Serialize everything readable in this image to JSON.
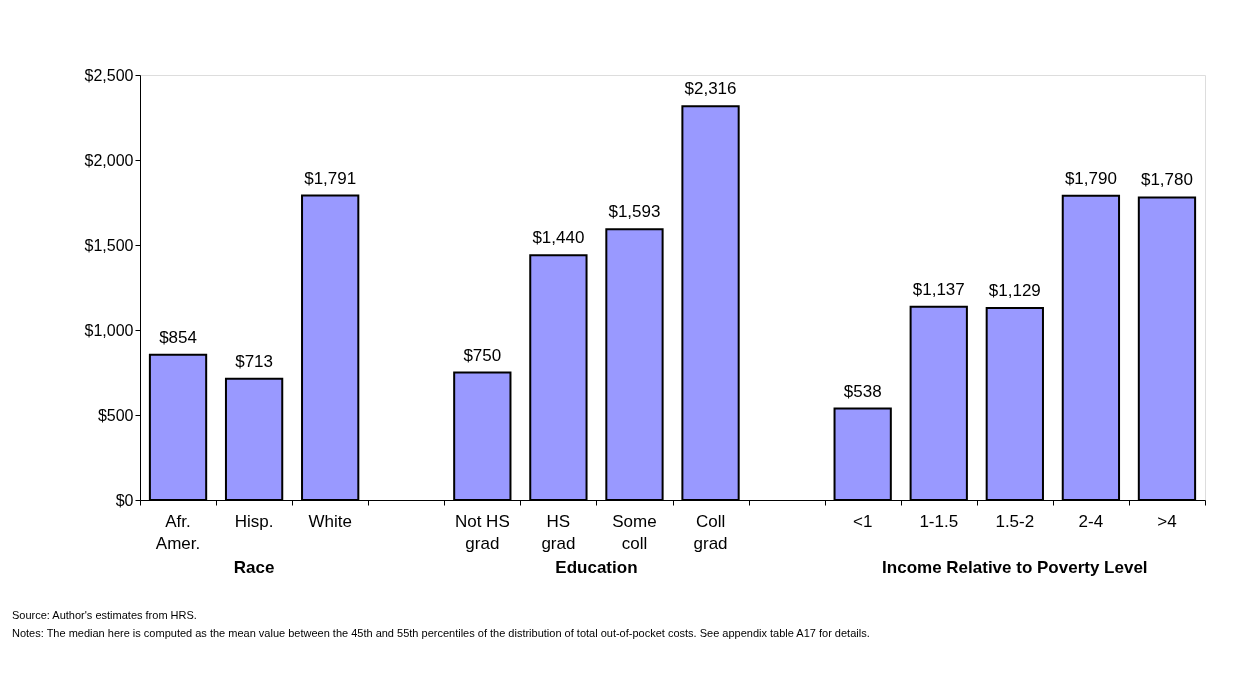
{
  "chart_data": {
    "type": "bar",
    "categories": [
      "Afr. Amer.",
      "Hisp.",
      "White",
      null,
      "Not HS grad",
      "HS grad",
      "Some coll",
      "Coll grad",
      null,
      "<1",
      "1-1.5",
      "1.5-2",
      "2-4",
      ">4"
    ],
    "values": [
      854,
      713,
      1791,
      null,
      750,
      1440,
      1593,
      2316,
      null,
      538,
      1137,
      1129,
      1790,
      1780
    ],
    "color": "#9999ff",
    "ylim": [
      0,
      2500
    ],
    "yticks": [
      {
        "value": 0,
        "label": "$0"
      },
      {
        "value": 500,
        "label": "$500"
      },
      {
        "value": 1000,
        "label": "$1,000"
      },
      {
        "value": 1500,
        "label": "$1,500"
      },
      {
        "value": 2000,
        "label": "$2,000"
      },
      {
        "value": 2500,
        "label": "$2,500"
      }
    ],
    "value_labels": [
      "$854",
      "$713",
      "$1,791",
      null,
      "$750",
      "$1,440",
      "$1,593",
      "$2,316",
      null,
      "$538",
      "$1,137",
      "$1,129",
      "$1,790",
      "$1,780"
    ],
    "grid": false,
    "annotations": [
      "Race",
      "Education",
      "Income Relative to Poverty Level",
      "Source:  Author's estimates from HRS.",
      "Notes:  The median here is computed as the mean value between the 45th and 55th percentiles of the distribution of total out-of-pocket costs.   See appendix table A17 for details."
    ]
  }
}
